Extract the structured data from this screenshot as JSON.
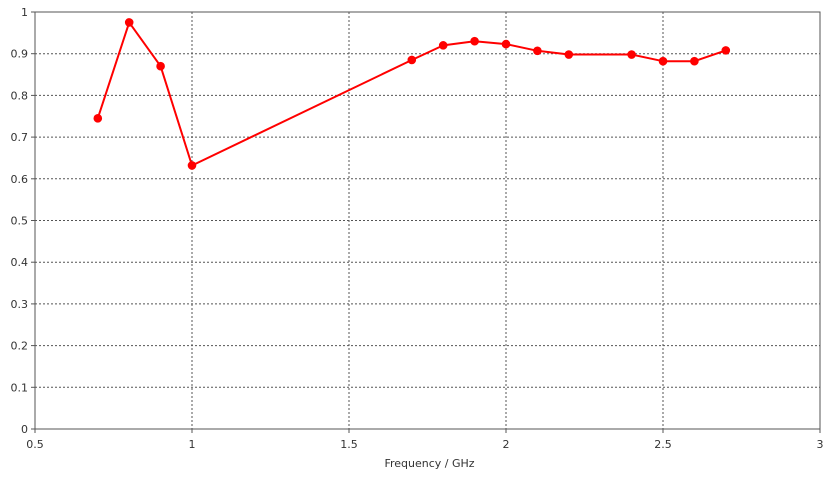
{
  "chart_data": {
    "type": "line",
    "title": "",
    "xlabel": "Frequency / GHz",
    "ylabel": "",
    "xlim": [
      0.5,
      3
    ],
    "ylim": [
      0,
      1
    ],
    "x_ticks": [
      0.5,
      1,
      1.5,
      2,
      2.5,
      3
    ],
    "x_tick_labels": [
      "0.5",
      "1",
      "1.5",
      "2",
      "2.5",
      "3"
    ],
    "y_ticks": [
      0,
      0.1,
      0.2,
      0.3,
      0.4,
      0.5,
      0.6,
      0.7,
      0.8,
      0.9,
      1
    ],
    "y_tick_labels": [
      "0",
      "0.1",
      "0.2",
      "0.3",
      "0.4",
      "0.5",
      "0.6",
      "0.7",
      "0.8",
      "0.9",
      "1"
    ],
    "grid": true,
    "legend": "none",
    "series": [
      {
        "color": "#ff0000",
        "marker": "circle",
        "x": [
          0.7,
          0.8,
          0.9,
          1.0,
          1.7,
          1.8,
          1.9,
          2.0,
          2.1,
          2.2,
          2.4,
          2.5,
          2.6,
          2.7
        ],
        "y": [
          0.745,
          0.975,
          0.87,
          0.632,
          0.885,
          0.92,
          0.93,
          0.923,
          0.907,
          0.898,
          0.898,
          0.882,
          0.882,
          0.908
        ]
      }
    ]
  }
}
